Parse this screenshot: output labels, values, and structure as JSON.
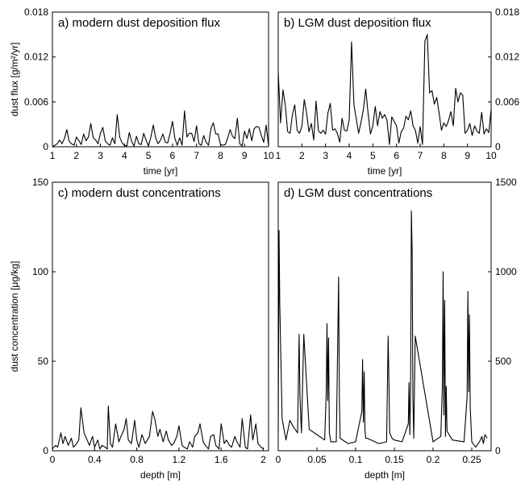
{
  "chart_data": [
    {
      "type": "line",
      "title": "a) modern dust deposition flux",
      "xlabel": "time  [yr]",
      "ylabel": "dust flux [g/m²/yr]",
      "xlim": [
        1,
        10
      ],
      "ylim": [
        0,
        0.018
      ],
      "xticks": [
        1,
        2,
        3,
        4,
        5,
        6,
        7,
        8,
        9,
        10
      ],
      "yticks": [
        0,
        0.006,
        0.012,
        0.018
      ],
      "ytick_labels": [
        "0",
        "0.006",
        "0.012",
        "0.018"
      ],
      "series": [
        {
          "x": [
            1.0,
            1.1,
            1.2,
            1.3,
            1.4,
            1.5,
            1.6,
            1.7,
            1.8,
            1.9,
            2.0,
            2.1,
            2.2,
            2.3,
            2.4,
            2.5,
            2.6,
            2.7,
            2.8,
            2.9,
            3.0,
            3.1,
            3.2,
            3.3,
            3.4,
            3.5,
            3.6,
            3.7,
            3.8,
            3.9,
            4.0,
            4.1,
            4.2,
            4.3,
            4.4,
            4.5,
            4.6,
            4.7,
            4.8,
            4.9,
            5.0,
            5.1,
            5.2,
            5.3,
            5.4,
            5.5,
            5.6,
            5.7,
            5.8,
            5.9,
            6.0,
            6.1,
            6.2,
            6.3,
            6.4,
            6.5,
            6.6,
            6.7,
            6.8,
            6.9,
            7.0,
            7.1,
            7.2,
            7.3,
            7.4,
            7.5,
            7.6,
            7.7,
            7.8,
            7.9,
            8.0,
            8.1,
            8.2,
            8.3,
            8.4,
            8.5,
            8.6,
            8.7,
            8.8,
            8.9,
            9.0,
            9.1,
            9.2,
            9.3,
            9.4,
            9.5,
            9.6,
            9.7,
            9.8,
            9.9,
            10.0
          ],
          "y": [
            0,
            0.0002,
            0.0004,
            0.0009,
            0.0004,
            0.0011,
            0.0023,
            0.0007,
            0.0004,
            0.0002,
            0.0013,
            0.0008,
            0.0003,
            0.0017,
            0.0008,
            0.0013,
            0.0031,
            0.0012,
            0.0009,
            0.0004,
            0.0018,
            0.0026,
            0.0008,
            0.0004,
            0.0002,
            0.0012,
            0.0004,
            0.0043,
            0.0013,
            0.0005,
            0.0002,
            0.0001,
            0.0019,
            0.0007,
            0.0001,
            0.0014,
            0.0004,
            0.0003,
            0.0018,
            0.0009,
            0.0001,
            0.0013,
            0.0029,
            0.0012,
            0.0004,
            0.0009,
            0.0017,
            0.0006,
            0.0005,
            0.0018,
            0.0034,
            0.0011,
            0.0002,
            0.0012,
            0.0002,
            0.0048,
            0.0013,
            0.0018,
            0.0018,
            0.0007,
            0.0028,
            0.0004,
            0.0002,
            0.0015,
            0.0006,
            0.0002,
            0.0024,
            0.0032,
            0.0017,
            0.0017,
            0.0003,
            0.0002,
            0.0003,
            0.0012,
            0.0023,
            0.0014,
            0.0011,
            0.0038,
            0.0004,
            0.0001,
            0.0021,
            0.0011,
            0.0024,
            0.0008,
            0.0024,
            0.0027,
            0.0026,
            0.0015,
            0.0006,
            0.0029,
            0.0001
          ]
        }
      ]
    },
    {
      "type": "line",
      "title": "b) LGM dust deposition flux",
      "xlabel": "time  [yr]",
      "xlim": [
        1,
        10
      ],
      "ylim": [
        0,
        0.018
      ],
      "xticks": [
        1,
        2,
        3,
        4,
        5,
        6,
        7,
        8,
        9,
        10
      ],
      "yticks": [
        0,
        0.006,
        0.012,
        0.018
      ],
      "ytick_labels": [
        "0",
        "0.006",
        "0.012",
        "0.018"
      ],
      "series": [
        {
          "x": [
            1.0,
            1.1,
            1.2,
            1.3,
            1.4,
            1.5,
            1.6,
            1.7,
            1.8,
            1.9,
            2.0,
            2.1,
            2.2,
            2.3,
            2.4,
            2.5,
            2.6,
            2.7,
            2.8,
            2.9,
            3.0,
            3.1,
            3.2,
            3.3,
            3.4,
            3.5,
            3.6,
            3.7,
            3.8,
            3.9,
            4.0,
            4.1,
            4.2,
            4.3,
            4.4,
            4.5,
            4.6,
            4.7,
            4.8,
            4.9,
            5.0,
            5.1,
            5.2,
            5.3,
            5.4,
            5.5,
            5.6,
            5.7,
            5.8,
            5.9,
            6.0,
            6.1,
            6.2,
            6.3,
            6.4,
            6.5,
            6.6,
            6.7,
            6.8,
            6.9,
            7.0,
            7.1,
            7.2,
            7.3,
            7.4,
            7.5,
            7.6,
            7.7,
            7.8,
            7.9,
            8.0,
            8.1,
            8.2,
            8.3,
            8.4,
            8.5,
            8.6,
            8.7,
            8.8,
            8.9,
            9.0,
            9.1,
            9.2,
            9.3,
            9.4,
            9.5,
            9.6,
            9.7,
            9.8,
            9.9,
            10.0
          ],
          "y": [
            0.01,
            0.0032,
            0.0076,
            0.0055,
            0.002,
            0.0018,
            0.0043,
            0.0056,
            0.0022,
            0.0018,
            0.0027,
            0.0063,
            0.0045,
            0.002,
            0.0031,
            0.0009,
            0.0061,
            0.0021,
            0.0018,
            0.0022,
            0.0017,
            0.0045,
            0.0058,
            0.0022,
            0.0024,
            0.0018,
            0.0006,
            0.0038,
            0.0022,
            0.0021,
            0.0036,
            0.014,
            0.0056,
            0.0037,
            0.0018,
            0.0033,
            0.005,
            0.0077,
            0.0044,
            0.0017,
            0.0028,
            0.0054,
            0.0028,
            0.0047,
            0.0038,
            0.0043,
            0.0035,
            0.0003,
            0.004,
            0.0034,
            0.0028,
            0.0005,
            0.002,
            0.0025,
            0.0041,
            0.0036,
            0.0048,
            0.0028,
            0.0022,
            0.0005,
            0.0027,
            0.0003,
            0.0141,
            0.015,
            0.0072,
            0.0075,
            0.0057,
            0.0066,
            0.0045,
            0.0022,
            0.0032,
            0.0027,
            0.0035,
            0.0047,
            0.0028,
            0.0078,
            0.006,
            0.0072,
            0.0069,
            0.0018,
            0.0022,
            0.0031,
            0.0015,
            0.0028,
            0.0021,
            0.0018,
            0.0046,
            0.0017,
            0.0024,
            0.0019,
            0.005
          ]
        }
      ]
    },
    {
      "type": "line",
      "title": "c) modern dust concentrations",
      "xlabel": "depth [m]",
      "ylabel": "dust concentration [μg/kg]",
      "xlim": [
        0,
        2.05
      ],
      "ylim": [
        0,
        150
      ],
      "xticks": [
        0,
        0.4,
        0.8,
        1.2,
        1.6,
        2
      ],
      "yticks": [
        0,
        50,
        100,
        150
      ],
      "series": [
        {
          "x": [
            0.0,
            0.03,
            0.05,
            0.08,
            0.1,
            0.12,
            0.15,
            0.18,
            0.2,
            0.23,
            0.25,
            0.27,
            0.3,
            0.33,
            0.35,
            0.38,
            0.4,
            0.43,
            0.45,
            0.47,
            0.5,
            0.52,
            0.53,
            0.55,
            0.57,
            0.6,
            0.63,
            0.65,
            0.68,
            0.7,
            0.72,
            0.75,
            0.78,
            0.8,
            0.82,
            0.85,
            0.88,
            0.9,
            0.92,
            0.95,
            0.97,
            1.0,
            1.02,
            1.05,
            1.08,
            1.1,
            1.13,
            1.15,
            1.18,
            1.2,
            1.23,
            1.25,
            1.28,
            1.3,
            1.33,
            1.35,
            1.38,
            1.4,
            1.43,
            1.45,
            1.48,
            1.5,
            1.53,
            1.55,
            1.58,
            1.6,
            1.63,
            1.65,
            1.68,
            1.7,
            1.73,
            1.75,
            1.78,
            1.8,
            1.83,
            1.85,
            1.88,
            1.9,
            1.93,
            1.95,
            1.98,
            2.0
          ],
          "y": [
            1,
            3,
            2,
            10,
            4,
            8,
            3,
            7,
            2,
            4,
            6,
            24,
            10,
            6,
            3,
            8,
            2,
            6,
            1,
            3,
            2,
            1,
            25,
            4,
            2,
            15,
            5,
            8,
            12,
            18,
            6,
            4,
            17,
            6,
            2,
            9,
            4,
            6,
            8,
            22,
            18,
            8,
            12,
            5,
            11,
            6,
            3,
            4,
            8,
            14,
            3,
            2,
            1,
            5,
            2,
            8,
            10,
            15,
            5,
            3,
            1,
            8,
            9,
            3,
            1,
            15,
            4,
            6,
            3,
            2,
            8,
            5,
            2,
            18,
            2,
            1,
            20,
            6,
            15,
            4,
            2,
            1
          ]
        }
      ]
    },
    {
      "type": "line",
      "title": "d) LGM dust concentrations",
      "xlabel": "depth [m]",
      "xlim": [
        0,
        0.275
      ],
      "ylim": [
        0,
        1500
      ],
      "xticks": [
        0,
        0.05,
        0.1,
        0.15,
        0.2,
        0.25
      ],
      "yticks": [
        0,
        500,
        1000,
        1500
      ],
      "series": [
        {
          "x": [
            0.0,
            0.001,
            0.002,
            0.003,
            0.005,
            0.01,
            0.015,
            0.02,
            0.025,
            0.027,
            0.028,
            0.029,
            0.03,
            0.033,
            0.04,
            0.05,
            0.06,
            0.062,
            0.063,
            0.064,
            0.065,
            0.066,
            0.068,
            0.075,
            0.078,
            0.079,
            0.08,
            0.09,
            0.1,
            0.108,
            0.109,
            0.11,
            0.111,
            0.112,
            0.113,
            0.115,
            0.13,
            0.14,
            0.142,
            0.143,
            0.144,
            0.147,
            0.15,
            0.16,
            0.168,
            0.169,
            0.17,
            0.171,
            0.172,
            0.173,
            0.174,
            0.175,
            0.177,
            0.2,
            0.21,
            0.212,
            0.213,
            0.214,
            0.215,
            0.216,
            0.217,
            0.218,
            0.225,
            0.24,
            0.244,
            0.245,
            0.246,
            0.247,
            0.248,
            0.25,
            0.255,
            0.26,
            0.263,
            0.265,
            0.267,
            0.27
          ],
          "y": [
            100,
            1230,
            820,
            600,
            180,
            60,
            170,
            130,
            100,
            650,
            320,
            200,
            100,
            650,
            120,
            90,
            60,
            320,
            710,
            280,
            630,
            100,
            50,
            50,
            970,
            300,
            70,
            40,
            50,
            220,
            510,
            160,
            440,
            120,
            70,
            70,
            40,
            50,
            640,
            380,
            100,
            70,
            60,
            50,
            150,
            380,
            90,
            370,
            1340,
            1100,
            300,
            70,
            640,
            50,
            80,
            350,
            1000,
            200,
            840,
            80,
            360,
            110,
            60,
            50,
            300,
            890,
            330,
            760,
            240,
            50,
            20,
            50,
            80,
            40,
            90,
            70
          ]
        }
      ]
    }
  ]
}
